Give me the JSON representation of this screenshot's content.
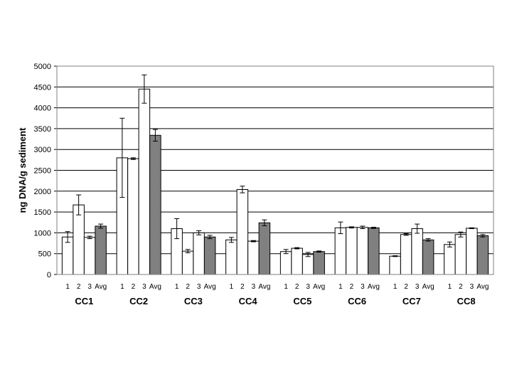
{
  "chart_data": {
    "type": "bar",
    "ylabel": "ng DNA/g sediment",
    "ylim": [
      0,
      5000
    ],
    "yticks": [
      0,
      500,
      1000,
      1500,
      2000,
      2500,
      3000,
      3500,
      4000,
      4500,
      5000
    ],
    "grid": true,
    "bar_labels": [
      "1",
      "2",
      "3",
      "Avg"
    ],
    "colors": {
      "replicate": "#ffffff",
      "average": "#808080",
      "outline": "#000000"
    },
    "groups": [
      {
        "name": "CC1",
        "values": [
          900,
          1670,
          890,
          1160
        ],
        "errors": [
          130,
          240,
          30,
          50
        ]
      },
      {
        "name": "CC2",
        "values": [
          2800,
          2780,
          4450,
          3340
        ],
        "errors": [
          950,
          20,
          340,
          140
        ]
      },
      {
        "name": "CC3",
        "values": [
          1100,
          560,
          1000,
          900
        ],
        "errors": [
          240,
          40,
          50,
          40
        ]
      },
      {
        "name": "CC4",
        "values": [
          830,
          2040,
          800,
          1240
        ],
        "errors": [
          60,
          80,
          15,
          70
        ]
      },
      {
        "name": "CC5",
        "values": [
          550,
          630,
          480,
          550
        ],
        "errors": [
          50,
          15,
          50,
          15
        ]
      },
      {
        "name": "CC6",
        "values": [
          1120,
          1130,
          1130,
          1120
        ],
        "errors": [
          140,
          15,
          30,
          15
        ]
      },
      {
        "name": "CC7",
        "values": [
          440,
          960,
          1100,
          830
        ],
        "errors": [
          10,
          20,
          110,
          30
        ]
      },
      {
        "name": "CC8",
        "values": [
          720,
          960,
          1110,
          930
        ],
        "errors": [
          60,
          60,
          10,
          30
        ]
      }
    ]
  }
}
